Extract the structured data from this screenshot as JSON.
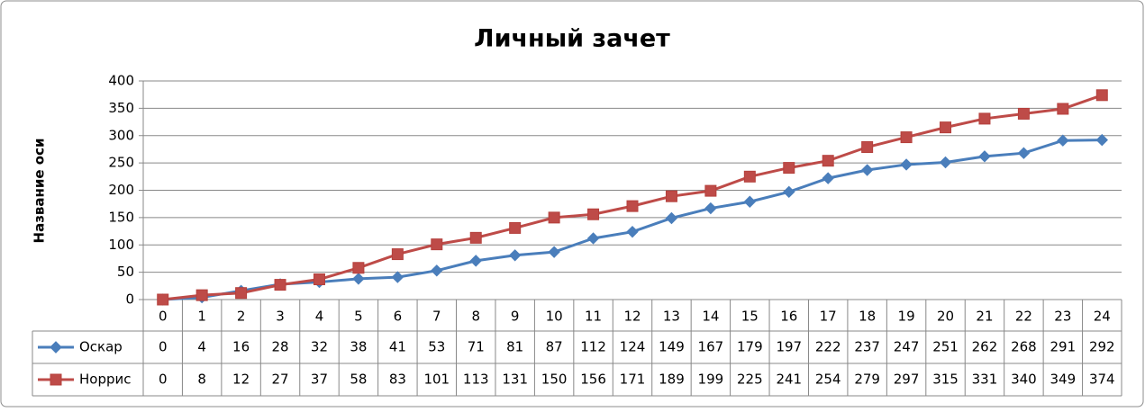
{
  "chart_data": {
    "type": "line",
    "title": "Личный зачет",
    "y_label": "Название оси",
    "categories": [
      0,
      1,
      2,
      3,
      4,
      5,
      6,
      7,
      8,
      9,
      10,
      11,
      12,
      13,
      14,
      15,
      16,
      17,
      18,
      19,
      20,
      21,
      22,
      23,
      24
    ],
    "series": [
      {
        "name": "Оскар",
        "color": "#4a7ebb",
        "marker": "diamond",
        "values": [
          0,
          4,
          16,
          28,
          32,
          38,
          41,
          53,
          71,
          81,
          87,
          112,
          124,
          149,
          167,
          179,
          197,
          222,
          237,
          247,
          251,
          262,
          268,
          291,
          292
        ]
      },
      {
        "name": "Норрис",
        "color": "#be4b48",
        "marker": "square",
        "values": [
          0,
          8,
          12,
          27,
          37,
          58,
          83,
          101,
          113,
          131,
          150,
          156,
          171,
          189,
          199,
          225,
          241,
          254,
          279,
          297,
          315,
          331,
          340,
          349,
          374
        ]
      }
    ],
    "ylim": [
      0,
      400
    ],
    "yticks": [
      0,
      50,
      100,
      150,
      200,
      250,
      300,
      350,
      400
    ],
    "grid": true,
    "data_table": true
  }
}
